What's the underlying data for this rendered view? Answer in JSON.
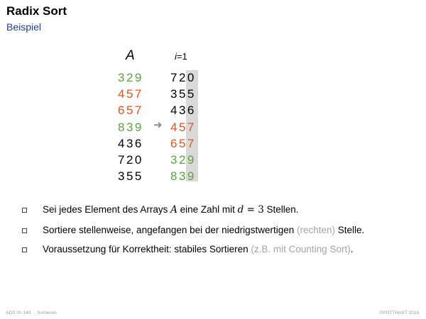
{
  "header": {
    "title": "Radix Sort",
    "subtitle": "Beispiel"
  },
  "colors": {
    "accent_green": "#5aa63a",
    "accent_orange": "#e2541f",
    "subtitle_blue": "#1f3f8f",
    "highlight_gray": "#d9d9d9"
  },
  "table": {
    "col_a_header": "A",
    "col_b_header_var": "i",
    "col_b_header_rest": "=1",
    "arrow": "➜",
    "col_a": [
      {
        "value": "329",
        "color": "#5aa63a"
      },
      {
        "value": "457",
        "color": "#e2541f"
      },
      {
        "value": "657",
        "color": "#e2541f"
      },
      {
        "value": "839",
        "color": "#5aa63a"
      },
      {
        "value": "436",
        "color": "#000000"
      },
      {
        "value": "720",
        "color": "#000000"
      },
      {
        "value": "355",
        "color": "#000000"
      }
    ],
    "col_b": [
      {
        "value": "720",
        "color": "#000000"
      },
      {
        "value": "355",
        "color": "#000000"
      },
      {
        "value": "436",
        "color": "#000000"
      },
      {
        "value": "457",
        "color": "#e2541f"
      },
      {
        "value": "657",
        "color": "#e2541f"
      },
      {
        "value": "329",
        "color": "#5aa63a"
      },
      {
        "value": "839",
        "color": "#5aa63a"
      }
    ]
  },
  "bullets": [
    {
      "p1": "Sei jedes Element des Arrays ",
      "m1": "A",
      "p2": " eine Zahl mit ",
      "m2": "d",
      "m3": " = 3",
      "p3": " Stellen."
    },
    {
      "p1": "Sortiere stellenweise, angefangen bei der niedrigstwertigen ",
      "muted": "(rechten)",
      "p2": " Stelle."
    },
    {
      "p1": "Voraussetzung für Korrektheit: stabiles Sortieren ",
      "muted": "(z.B. mit Counting Sort)",
      "p2": "."
    }
  ],
  "footer": {
    "code": "ADS:III-149",
    "section": "Sortieren",
    "copyright": "©POTTHAST 2018"
  }
}
